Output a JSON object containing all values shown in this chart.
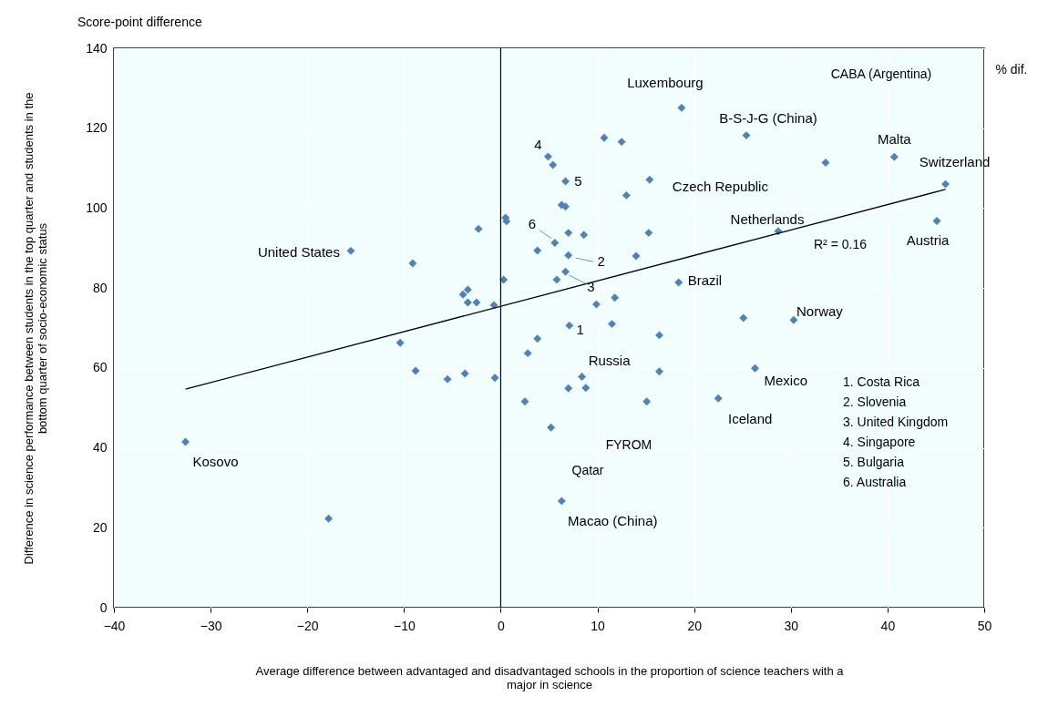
{
  "chart_data": {
    "type": "scatter",
    "xlabel": "Average difference between advantaged and disadvantaged schools in the proportion of science teachers with a major in science",
    "ylabel": "Difference in science performance between students in the top quarter and students in the bottom quarter of socio-economic status",
    "xlim": [
      -40,
      50
    ],
    "xticks": [
      -40,
      -30,
      -20,
      -10,
      0,
      10,
      20,
      30,
      40,
      50
    ],
    "ylim": [
      0,
      140
    ],
    "yticks": [
      0,
      20,
      40,
      60,
      80,
      100,
      120,
      140
    ],
    "grid": true,
    "marker": "diamond",
    "ref_lines": [
      {
        "axis": "x",
        "value": 0,
        "color": "#000000"
      }
    ],
    "series": [
      {
        "color": "#4f81bd",
        "x": [
          -32.6,
          -17.8,
          -15.5,
          -9.1,
          -10.4,
          -8.8,
          -5.5,
          -3.7,
          -0.6,
          -2.3,
          0.6,
          0.5,
          -3.9,
          -3.4,
          -3.4,
          -2.5,
          -0.7,
          0.3,
          18.7,
          10.7,
          12.5,
          25.4,
          4.9,
          5.4,
          6.7,
          15.4,
          13.0,
          6.3,
          6.7,
          7.0,
          8.6,
          15.3,
          5.6,
          3.8,
          7.0,
          14.0,
          6.7,
          5.8,
          18.4,
          11.8,
          9.9,
          7.1,
          11.5,
          16.4,
          25.1,
          3.8,
          2.8,
          8.4,
          7.0,
          8.8,
          16.4,
          15.1,
          2.5,
          5.2,
          6.3,
          22.5,
          33.6,
          40.7,
          46.0,
          45.1,
          28.7,
          30.3,
          26.3
        ],
        "values": [
          41.5,
          22.3,
          89.3,
          86.2,
          66.3,
          59.3,
          57.2,
          58.6,
          57.5,
          94.8,
          96.7,
          97.6,
          78.4,
          79.6,
          76.4,
          76.4,
          75.7,
          82.1,
          125.1,
          117.6,
          116.6,
          118.2,
          112.9,
          110.8,
          106.7,
          107.1,
          103.2,
          100.8,
          100.4,
          93.8,
          93.3,
          93.8,
          91.3,
          89.4,
          88.2,
          88.0,
          84.1,
          82.1,
          81.4,
          77.6,
          75.9,
          70.6,
          71.0,
          68.2,
          72.5,
          67.3,
          63.7,
          57.8,
          54.9,
          55.0,
          59.1,
          51.6,
          51.6,
          45.1,
          26.7,
          52.4,
          111.4,
          112.8,
          106.0,
          96.8,
          94.2,
          72.0,
          59.9
        ]
      },
      {
        "type": "line",
        "marker": "none",
        "color": "#000000",
        "x": [
          -32.6,
          46.0
        ],
        "values": [
          54.7,
          104.7
        ]
      }
    ],
    "annotations": [
      "Score-point difference",
      "% dif.",
      "R² = 0.16",
      "1. Costa Rica",
      "2. Slovenia",
      "3. United Kingdom",
      "4. Singapore",
      "5. Bulgaria",
      "6. Australia",
      {
        "text": "Kosovo",
        "x": -32.6,
        "y": 41.5
      },
      {
        "text": "United States",
        "x": -15.5,
        "y": 89.3
      },
      {
        "text": "Luxembourg",
        "x": 18.7,
        "y": 125.1
      },
      {
        "text": "B-S-J-G (China)",
        "x": 25.4,
        "y": 118.2
      },
      "CABA (Argentina)",
      {
        "text": "Malta",
        "x": 40.7,
        "y": 112.8
      },
      {
        "text": "Switzerland",
        "x": 46.0,
        "y": 106.0
      },
      {
        "text": "Czech Republic",
        "x": 15.4,
        "y": 107.1
      },
      {
        "text": "Netherlands",
        "x": 28.7,
        "y": 94.2
      },
      {
        "text": "Austria",
        "x": 45.1,
        "y": 96.8
      },
      {
        "text": "Brazil",
        "x": 18.4,
        "y": 81.4
      },
      {
        "text": "Norway",
        "x": 30.3,
        "y": 72.0
      },
      {
        "text": "Mexico",
        "x": 26.3,
        "y": 59.9
      },
      {
        "text": "Iceland",
        "x": 22.5,
        "y": 52.4
      },
      {
        "text": "Russia",
        "x": 8.4,
        "y": 57.8
      },
      "FYROM",
      "Qatar",
      {
        "text": "Macao (China)",
        "x": 6.3,
        "y": 26.7
      },
      {
        "text": "1",
        "x": 7.1,
        "y": 70.6
      },
      {
        "text": "2",
        "x": 7.0,
        "y": 88.2
      },
      {
        "text": "3",
        "x": 6.7,
        "y": 84.1
      },
      {
        "text": "4",
        "x": 4.9,
        "y": 112.9
      },
      {
        "text": "5",
        "x": 6.7,
        "y": 106.7
      },
      {
        "text": "6",
        "x": 5.6,
        "y": 91.3
      }
    ]
  }
}
